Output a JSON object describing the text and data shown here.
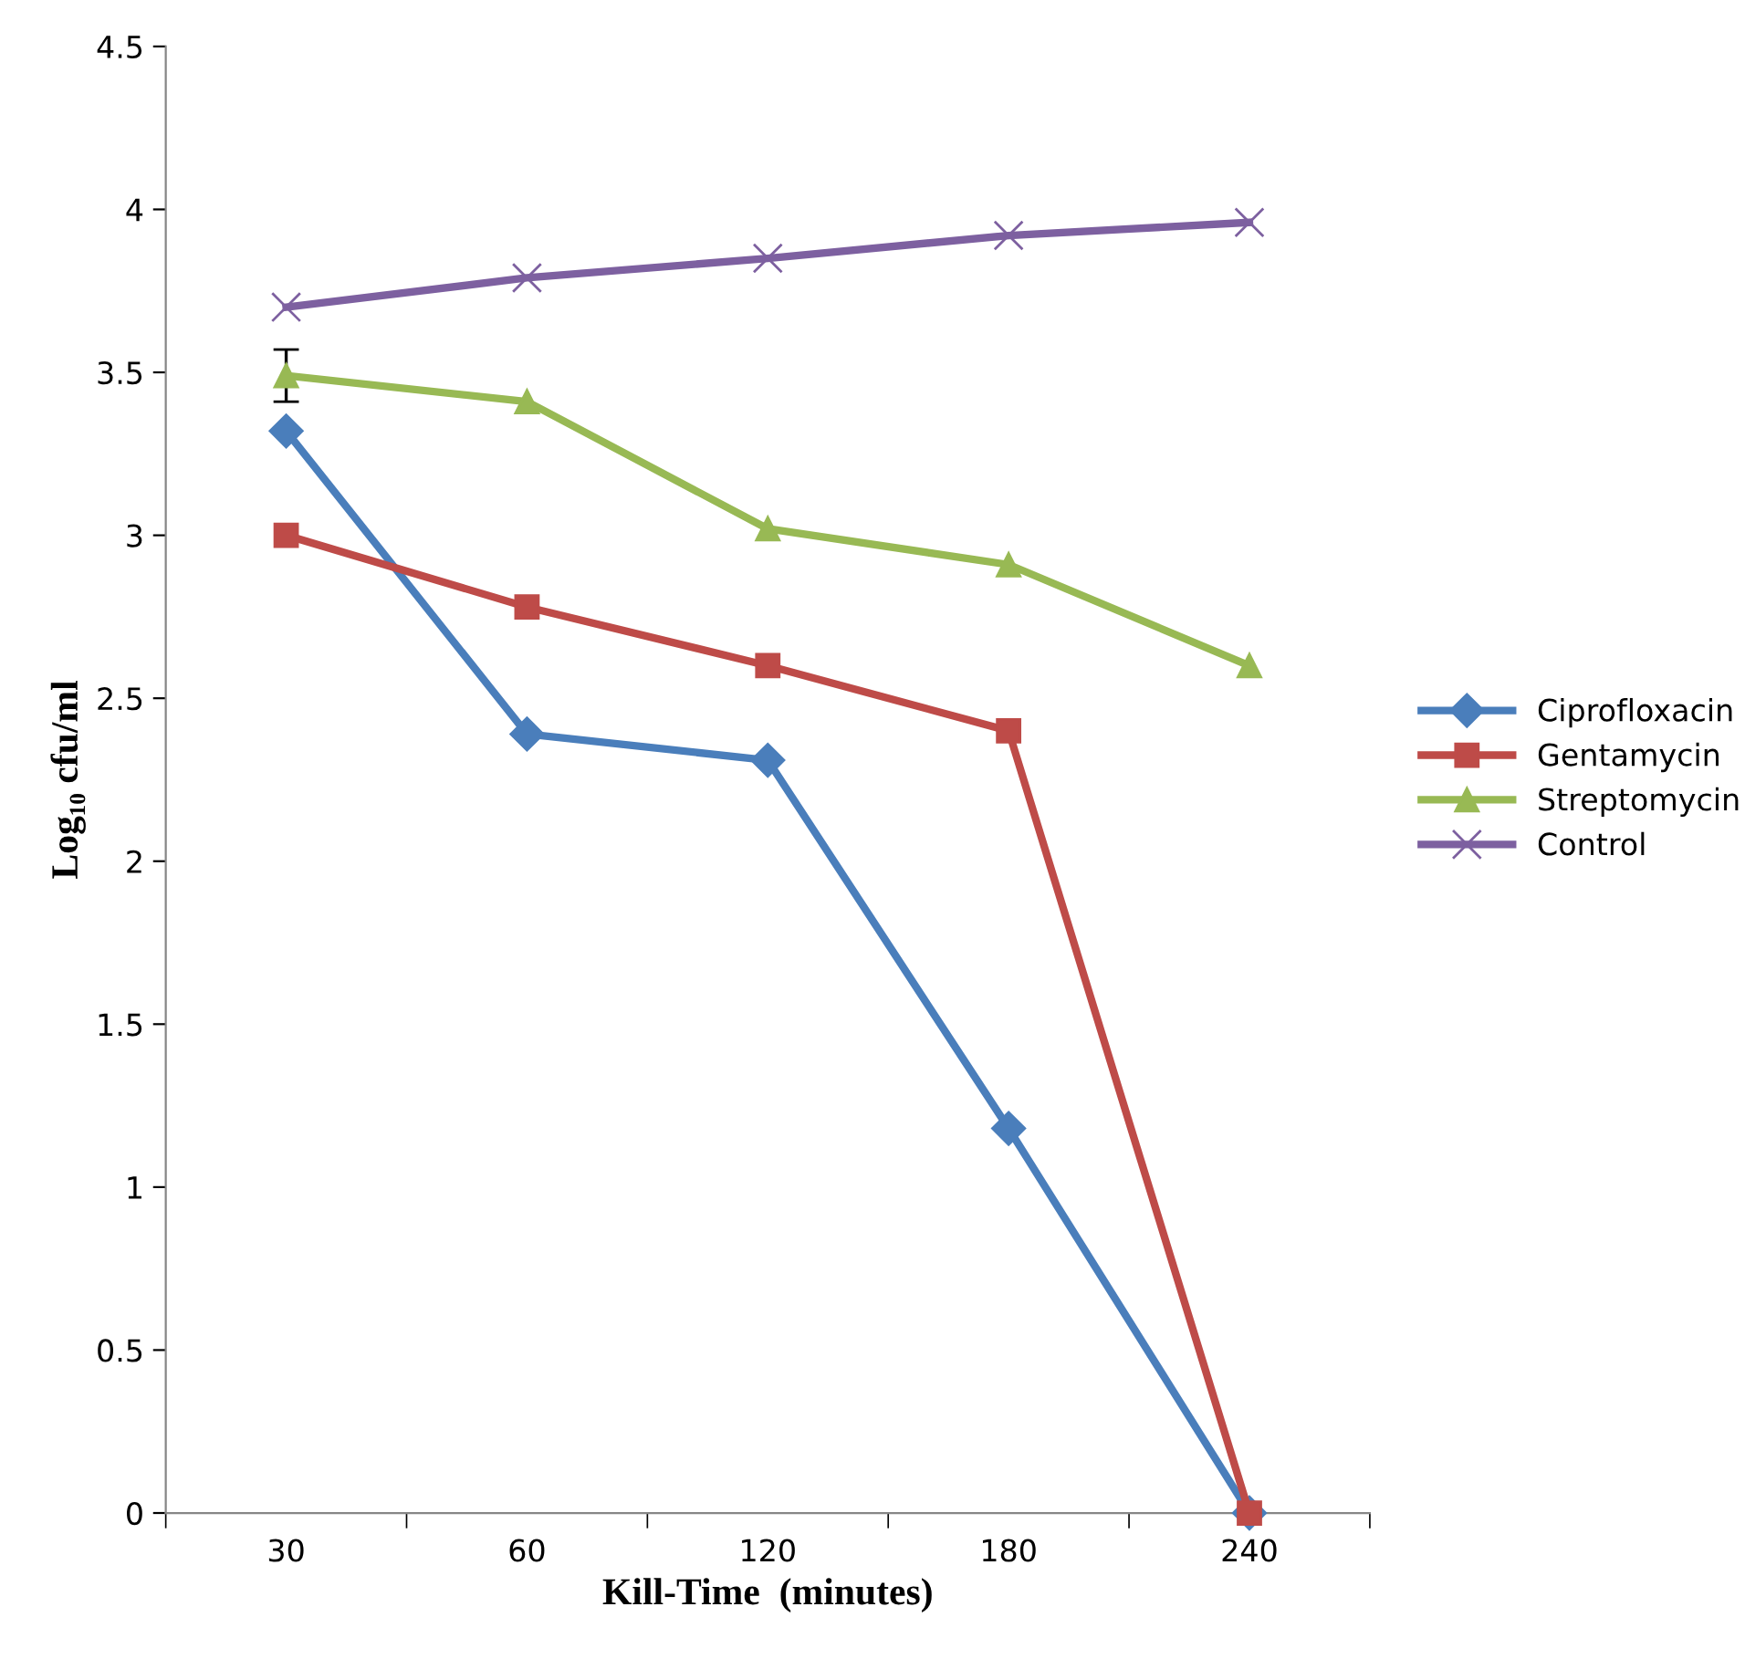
{
  "chart_data": {
    "type": "line",
    "xlabel": "Kill-Time  (minutes)",
    "ylabel": "Log₁₀ cfu/ml",
    "categories": [
      "30",
      "60",
      "120",
      "180",
      "240"
    ],
    "series": [
      {
        "name": "Ciprofloxacin",
        "color": "#4a7ebb",
        "marker": "diamond",
        "values": [
          3.32,
          2.39,
          2.31,
          1.18,
          0
        ]
      },
      {
        "name": "Gentamycin",
        "color": "#be4b48",
        "marker": "square",
        "values": [
          3.0,
          2.78,
          2.6,
          2.4,
          0
        ]
      },
      {
        "name": "Streptomycin",
        "color": "#98b954",
        "marker": "triangle",
        "values": [
          3.49,
          3.41,
          3.02,
          2.91,
          2.6
        ],
        "errors": [
          0.08,
          null,
          null,
          null,
          null
        ]
      },
      {
        "name": "Control",
        "color": "#7d60a0",
        "marker": "cross",
        "values": [
          3.7,
          3.79,
          3.85,
          3.92,
          3.96
        ]
      }
    ],
    "ylim": [
      0,
      4.5
    ],
    "yticks": [
      0,
      0.5,
      1,
      1.5,
      2,
      2.5,
      3,
      3.5,
      4,
      4.5
    ],
    "grid": false,
    "legend": "right",
    "line_style": "solid"
  }
}
